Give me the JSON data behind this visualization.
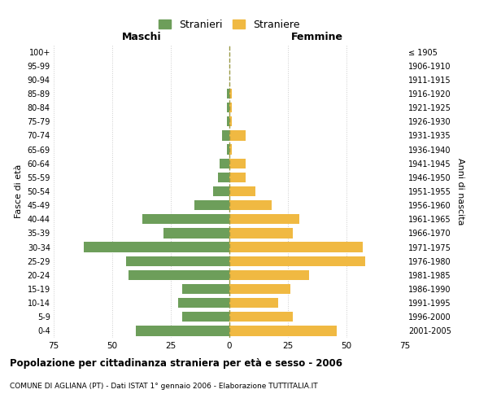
{
  "age_groups": [
    "0-4",
    "5-9",
    "10-14",
    "15-19",
    "20-24",
    "25-29",
    "30-34",
    "35-39",
    "40-44",
    "45-49",
    "50-54",
    "55-59",
    "60-64",
    "65-69",
    "70-74",
    "75-79",
    "80-84",
    "85-89",
    "90-94",
    "95-99",
    "100+"
  ],
  "birth_years": [
    "2001-2005",
    "1996-2000",
    "1991-1995",
    "1986-1990",
    "1981-1985",
    "1976-1980",
    "1971-1975",
    "1966-1970",
    "1961-1965",
    "1956-1960",
    "1951-1955",
    "1946-1950",
    "1941-1945",
    "1936-1940",
    "1931-1935",
    "1926-1930",
    "1921-1925",
    "1916-1920",
    "1911-1915",
    "1906-1910",
    "≤ 1905"
  ],
  "males": [
    40,
    20,
    22,
    20,
    43,
    44,
    62,
    28,
    37,
    15,
    7,
    5,
    4,
    1,
    3,
    1,
    1,
    1,
    0,
    0,
    0
  ],
  "females": [
    46,
    27,
    21,
    26,
    34,
    58,
    57,
    27,
    30,
    18,
    11,
    7,
    7,
    1,
    7,
    1,
    1,
    1,
    0,
    0,
    0
  ],
  "male_color": "#6d9e5a",
  "female_color": "#f0b942",
  "dashed_line_color": "#999944",
  "xlim": 75,
  "title": "Popolazione per cittadinanza straniera per età e sesso - 2006",
  "subtitle": "COMUNE DI AGLIANA (PT) - Dati ISTAT 1° gennaio 2006 - Elaborazione TUTTITALIA.IT",
  "xlabel_left": "Maschi",
  "xlabel_right": "Femmine",
  "ylabel_left": "Fasce di età",
  "ylabel_right": "Anni di nascita",
  "legend_male": "Stranieri",
  "legend_female": "Straniere",
  "bg_color": "#ffffff",
  "grid_color": "#cccccc"
}
